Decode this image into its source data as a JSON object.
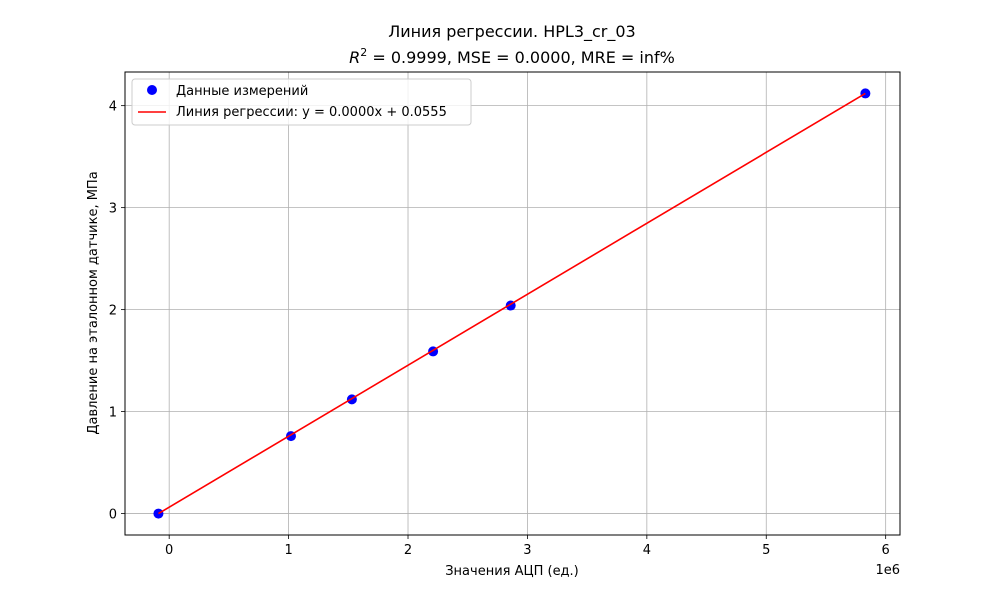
{
  "chart_data": {
    "type": "scatter",
    "title": "Линия регрессии. HPL3_cr_03",
    "subtitle_r2_symbol": "R",
    "subtitle_r2_power": "2",
    "subtitle_rest": " = 0.9999, MSE = 0.0000, MRE = inf%",
    "xlabel": "Значения АЦП (ед.)",
    "ylabel": "Давление на эталонном датчике, МПа",
    "x_offset_label": "1e6",
    "xlim": [
      -0.37,
      6.12
    ],
    "ylim": [
      -0.21,
      4.33
    ],
    "x_ticks": [
      0,
      1,
      2,
      3,
      4,
      5,
      6
    ],
    "x_tick_labels": [
      "0",
      "1",
      "2",
      "3",
      "4",
      "5",
      "6"
    ],
    "y_ticks": [
      0,
      1,
      2,
      3,
      4
    ],
    "y_tick_labels": [
      "0",
      "1",
      "2",
      "3",
      "4"
    ],
    "grid": true,
    "legend_placement": "upper-left",
    "series": [
      {
        "name": "Данные измерений",
        "kind": "scatter",
        "color": "#0000ff",
        "x": [
          -0.09,
          1.02,
          1.53,
          2.21,
          2.86,
          5.83
        ],
        "y": [
          0.0,
          0.76,
          1.12,
          1.59,
          2.04,
          4.12
        ]
      },
      {
        "name": "Линия регрессии: y = 0.0000x + 0.0555",
        "kind": "line",
        "color": "#ff0000",
        "x": [
          -0.09,
          5.83
        ],
        "y": [
          0.0,
          4.12
        ]
      }
    ]
  }
}
